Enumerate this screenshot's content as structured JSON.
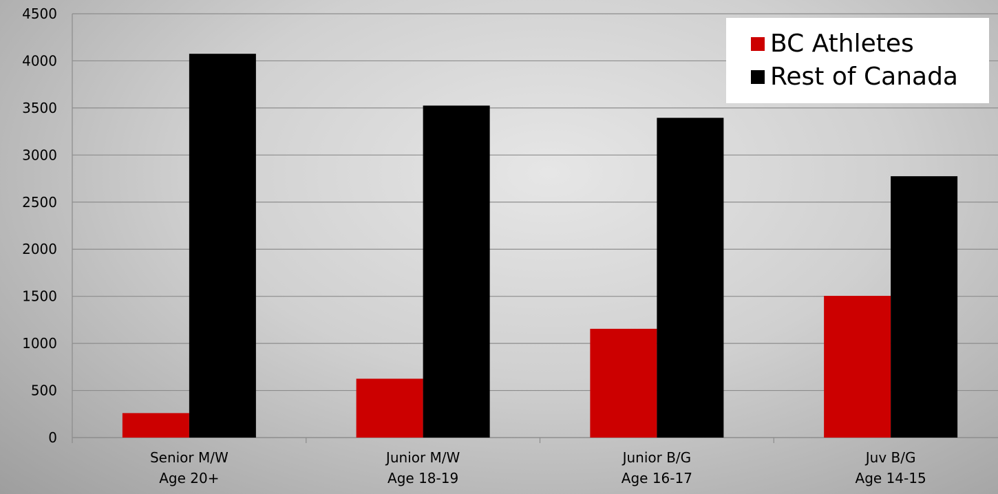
{
  "chart_data": {
    "type": "bar",
    "categories": [
      [
        "Senior M/W",
        "Age 20+"
      ],
      [
        "Junior M/W",
        "Age 18-19"
      ],
      [
        "Junior B/G",
        "Age 16-17"
      ],
      [
        "Juv B/G",
        "Age 14-15"
      ]
    ],
    "series": [
      {
        "name": "BC Athletes",
        "color": "#cc0000",
        "values": [
          260,
          625,
          1155,
          1505
        ]
      },
      {
        "name": "Rest of Canada",
        "color": "#000000",
        "values": [
          4075,
          3525,
          3395,
          2775
        ]
      }
    ],
    "ylim": [
      0,
      4500
    ],
    "yticks": [
      "0",
      "500",
      "1000",
      "1500",
      "2000",
      "2500",
      "3000",
      "3500",
      "4000",
      "4500"
    ],
    "grid": true,
    "legend_position": "top-right",
    "title": "",
    "xlabel": "",
    "ylabel": ""
  }
}
